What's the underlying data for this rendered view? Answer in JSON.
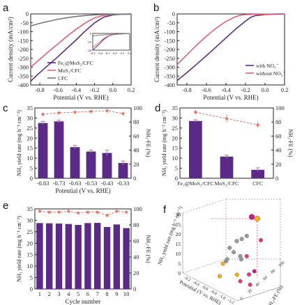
{
  "colors": {
    "purple": "#5b2a86",
    "pink": "#e0607a",
    "gray": "#777777",
    "fe_red": "#e07060",
    "ball_gray": "#9a9a9a",
    "ball_pink": "#e23a7e",
    "ball_yellow": "#f0b020",
    "ball_magenta": "#c0208a"
  },
  "panel_labels": [
    "a",
    "b",
    "c",
    "d",
    "e",
    "f"
  ],
  "chart_data": [
    {
      "panel": "a",
      "type": "line",
      "xlabel": "Potential (V vs. RHE)",
      "ylabel": "Current density (mA/cm²)",
      "xlim": [
        -0.9,
        0.2
      ],
      "ylim": [
        -400,
        0
      ],
      "xticks": [
        "-0.8",
        "-0.6",
        "-0.4",
        "-0.2",
        "0.0",
        "0.2"
      ],
      "yticks": [
        "0",
        "-50",
        "-100",
        "-150",
        "-200",
        "-250",
        "-300",
        "-350",
        "-400"
      ],
      "legend": [
        "Fe₁@MoS₂/CFC",
        "MoS₂/CFC",
        "CFC"
      ],
      "series": [
        {
          "name": "Fe₁@MoS₂/CFC",
          "color": "#5b2a86",
          "x": [
            -0.9,
            -0.8,
            -0.7,
            -0.6,
            -0.5,
            -0.4,
            -0.3,
            -0.2,
            -0.1,
            0.0,
            0.1,
            0.2
          ],
          "y": [
            -378,
            -330,
            -285,
            -240,
            -192,
            -145,
            -95,
            -50,
            -18,
            -6,
            -2,
            -1
          ]
        },
        {
          "name": "MoS₂/CFC",
          "color": "#e0607a",
          "x": [
            -0.9,
            -0.8,
            -0.7,
            -0.6,
            -0.5,
            -0.4,
            -0.3,
            -0.2,
            -0.1,
            0.0,
            0.1,
            0.2
          ],
          "y": [
            -300,
            -255,
            -210,
            -168,
            -125,
            -85,
            -50,
            -22,
            -8,
            -3,
            -1,
            0
          ]
        },
        {
          "name": "CFC",
          "color": "#777777",
          "x": [
            -0.9,
            -0.8,
            -0.7,
            -0.6,
            -0.5,
            -0.4,
            -0.3,
            -0.2,
            -0.1,
            0.0,
            0.1,
            0.2
          ],
          "y": [
            -68,
            -53,
            -41,
            -30,
            -21,
            -14,
            -9,
            -5,
            -3,
            -2,
            -1,
            0
          ]
        }
      ],
      "inset": {
        "xlim": [
          -0.3,
          0.2
        ],
        "ylim": [
          -20,
          0
        ],
        "xticks": [
          "-0.3",
          "-0.2",
          "-0.1",
          "0.0",
          "0.1",
          "0.2"
        ],
        "yticks": [
          "0",
          "-10",
          "-20"
        ],
        "series": [
          {
            "name": "Fe₁@MoS₂/CFC",
            "color": "#5b2a86",
            "x": [
              -0.3,
              -0.2,
              -0.15,
              -0.1,
              -0.05,
              0.0,
              0.1,
              0.2
            ],
            "y": [
              -20,
              -12,
              -7,
              -4,
              -2,
              -1,
              -0.5,
              0
            ]
          },
          {
            "name": "MoS₂/CFC",
            "color": "#e0607a",
            "x": [
              -0.3,
              -0.2,
              -0.15,
              -0.1,
              -0.05,
              0.0,
              0.1,
              0.2
            ],
            "y": [
              -17,
              -10,
              -6,
              -3.5,
              -2,
              -1,
              -0.5,
              0
            ]
          },
          {
            "name": "CFC",
            "color": "#777777",
            "x": [
              -0.3,
              -0.2,
              -0.1,
              0.0,
              0.1,
              0.2
            ],
            "y": [
              -3,
              -2,
              -1.5,
              -1,
              -0.5,
              0
            ]
          }
        ]
      }
    },
    {
      "panel": "b",
      "type": "line",
      "xlabel": "Potential (V vs. RHE)",
      "ylabel": "Current density (mA/cm²)",
      "xlim": [
        -0.9,
        0.2
      ],
      "ylim": [
        -400,
        0
      ],
      "xticks": [
        "-0.8",
        "-0.6",
        "-0.4",
        "-0.2",
        "0.0",
        "0.2"
      ],
      "yticks": [
        "0",
        "-50",
        "-100",
        "-150",
        "-200",
        "-250",
        "-300",
        "-350",
        "-400"
      ],
      "legend": [
        "with NO₃⁻",
        "without NO₃⁻"
      ],
      "series": [
        {
          "name": "with NO₃⁻",
          "color": "#5b2a86",
          "x": [
            -0.9,
            -0.8,
            -0.7,
            -0.6,
            -0.5,
            -0.4,
            -0.3,
            -0.2,
            -0.15,
            -0.1,
            0.0,
            0.1,
            0.2
          ],
          "y": [
            -375,
            -330,
            -283,
            -235,
            -185,
            -135,
            -85,
            -40,
            -20,
            -10,
            -3,
            -1,
            0
          ]
        },
        {
          "name": "without NO₃⁻",
          "color": "#e0607a",
          "x": [
            -0.9,
            -0.8,
            -0.7,
            -0.6,
            -0.5,
            -0.4,
            -0.3,
            -0.25,
            -0.2,
            -0.1,
            0.0,
            0.1,
            0.2
          ],
          "y": [
            -285,
            -230,
            -175,
            -125,
            -80,
            -42,
            -15,
            -7,
            -4,
            -2,
            -1,
            0,
            0
          ]
        }
      ]
    },
    {
      "panel": "c",
      "type": "bar",
      "xlabel": "Potential (V vs. RHE)",
      "ylabel": "NH₃ yield rate (mg h⁻¹ cm⁻²)",
      "y2label": "NH₃-FE (%)",
      "categories": [
        "-0.83",
        "-0.73",
        "-0.63",
        "-0.53",
        "-0.43",
        "-0.33"
      ],
      "ylim": [
        0,
        35
      ],
      "y2lim": [
        0,
        100
      ],
      "yticks": [
        "0",
        "5",
        "10",
        "15",
        "20",
        "25",
        "30",
        "35"
      ],
      "y2ticks": [
        "0",
        "20",
        "40",
        "60",
        "80",
        "100"
      ],
      "series": [
        {
          "name": "NH₃ yield rate",
          "color": "#5b2a86",
          "values": [
            27.5,
            28.3,
            15.5,
            13.3,
            12.6,
            7.6
          ],
          "errors": [
            0.8,
            0.6,
            0.9,
            0.7,
            1.4,
            1.0
          ]
        },
        {
          "name": "NH₃-FE",
          "color": "#e07060",
          "axis": "right",
          "values": [
            91,
            93,
            94,
            95,
            96,
            92
          ]
        }
      ]
    },
    {
      "panel": "d",
      "type": "bar",
      "ylabel": "NH₃ yield rate (mg h⁻¹ cm⁻²)",
      "y2label": "NH₃-FE (%)",
      "categories": [
        "Fe₁@MoS₂/CFC",
        "MoS₂/CFC",
        "CFC"
      ],
      "ylim": [
        0,
        35
      ],
      "y2lim": [
        0,
        100
      ],
      "yticks": [
        "0",
        "5",
        "10",
        "15",
        "20",
        "25",
        "30",
        "35"
      ],
      "y2ticks": [
        "0",
        "20",
        "40",
        "60",
        "80",
        "100"
      ],
      "series": [
        {
          "name": "NH₃ yield rate",
          "color": "#5b2a86",
          "values": [
            28.5,
            10.8,
            4.2
          ],
          "errors": [
            0.6,
            0.7,
            1.0
          ]
        },
        {
          "name": "NH₃-FE",
          "color": "#e07060",
          "axis": "right",
          "values": [
            94,
            85,
            76
          ],
          "errors": [
            3,
            6,
            4
          ]
        }
      ]
    },
    {
      "panel": "e",
      "type": "bar",
      "xlabel": "Cycle number",
      "ylabel": "NH₃ yield rate (mg h⁻¹ cm⁻²)",
      "y2label": "NH₃-FE (%)",
      "categories": [
        "1",
        "2",
        "3",
        "4",
        "5",
        "6",
        "7",
        "8",
        "9",
        "10"
      ],
      "ylim": [
        0,
        35
      ],
      "y2lim": [
        0,
        100
      ],
      "yticks": [
        "0",
        "5",
        "10",
        "15",
        "20",
        "25",
        "30",
        "35"
      ],
      "y2ticks": [
        "0",
        "20",
        "40",
        "60",
        "80",
        "100"
      ],
      "series": [
        {
          "name": "NH₃ yield rate",
          "color": "#5b2a86",
          "values": [
            28.8,
            28.7,
            28.6,
            28.4,
            28.0,
            28.8,
            28.9,
            27.1,
            28.2,
            26.6
          ]
        },
        {
          "name": "NH₃-FE",
          "color": "#e07060",
          "axis": "right",
          "values": [
            97,
            96,
            96,
            97,
            95,
            96,
            96,
            92,
            97,
            96
          ]
        }
      ]
    },
    {
      "panel": "f",
      "type": "scatter",
      "zlabel": "NH₃ yield rate (mg h⁻¹ cm⁻²)",
      "xlabel": "Potential (V vs. RHE)",
      "ylabel": "NH₃-FE (%)",
      "ztick_labels": [
        "0",
        "5",
        "10",
        "15",
        "20",
        "25",
        "30"
      ],
      "xtick_labels": [
        "-0.2",
        "-0.4",
        "-0.6",
        "-0.8",
        "-1.0",
        "-1.2"
      ],
      "ytick_labels": [
        "0",
        "20",
        "40",
        "60",
        "80",
        "100"
      ],
      "points": [
        {
          "potential": -0.83,
          "fe": 93,
          "yield": 29.5,
          "color": "#f0b020"
        },
        {
          "potential": -0.73,
          "fe": 93,
          "yield": 29.0,
          "color": "#c0208a"
        },
        {
          "potential": -1.0,
          "fe": 80,
          "yield": 22.0,
          "color": "#e23a7e"
        },
        {
          "potential": -0.63,
          "fe": 94,
          "yield": 18.0,
          "color": "#9a9a9a"
        },
        {
          "potential": -0.53,
          "fe": 95,
          "yield": 15.0,
          "color": "#9a9a9a"
        },
        {
          "potential": -0.43,
          "fe": 96,
          "yield": 12.5,
          "color": "#9a9a9a"
        },
        {
          "potential": -0.33,
          "fe": 92,
          "yield": 8.0,
          "color": "#9a9a9a"
        },
        {
          "potential": -0.9,
          "fe": 60,
          "yield": 14.0,
          "color": "#e23a7e"
        },
        {
          "potential": -1.1,
          "fe": 40,
          "yield": 9.0,
          "color": "#e23a7e"
        },
        {
          "potential": -0.7,
          "fe": 70,
          "yield": 10.5,
          "color": "#9a9a9a"
        },
        {
          "potential": -0.6,
          "fe": 85,
          "yield": 6.5,
          "color": "#9a9a9a"
        },
        {
          "potential": -0.5,
          "fe": 55,
          "yield": 5.0,
          "color": "#f0b020"
        },
        {
          "potential": -0.4,
          "fe": 75,
          "yield": 3.5,
          "color": "#9a9a9a"
        },
        {
          "potential": -0.8,
          "fe": 50,
          "yield": 4.0,
          "color": "#f0b020"
        },
        {
          "potential": -1.2,
          "fe": 30,
          "yield": 6.0,
          "color": "#e23a7e"
        },
        {
          "potential": -0.3,
          "fe": 90,
          "yield": 2.0,
          "color": "#9a9a9a"
        },
        {
          "potential": -1.0,
          "fe": 65,
          "yield": 7.5,
          "color": "#c0208a"
        },
        {
          "potential": -0.9,
          "fe": 45,
          "yield": 2.5,
          "color": "#e23a7e"
        },
        {
          "potential": -0.6,
          "fe": 35,
          "yield": 1.5,
          "color": "#f0b020"
        },
        {
          "potential": -0.5,
          "fe": 80,
          "yield": 9.0,
          "color": "#9a9a9a"
        }
      ]
    }
  ]
}
